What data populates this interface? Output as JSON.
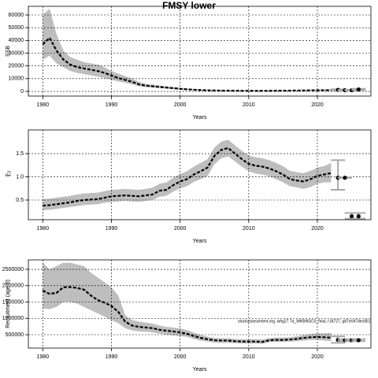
{
  "chart_data": [
    {
      "type": "line",
      "title": "FMSY lower",
      "ylabel": "SSB",
      "xlabel": "Years",
      "grid": true,
      "xlim": [
        1977.9,
        2027.8
      ],
      "xticks": [
        1980,
        1990,
        2000,
        2010,
        2020
      ],
      "ylim": [
        -3700,
        66800
      ],
      "yticks": [
        0,
        10000,
        20000,
        30000,
        40000,
        50000,
        60000
      ],
      "color": "#000000",
      "band_color": "#bebebe",
      "x": [
        1980,
        1981,
        1982,
        1983,
        1984,
        1985,
        1986,
        1987,
        1988,
        1989,
        1990,
        1991,
        1992,
        1993,
        1994,
        1995,
        1996,
        1997,
        1998,
        1999,
        2000,
        2001,
        2002,
        2003,
        2004,
        2005,
        2006,
        2007,
        2008,
        2009,
        2010,
        2011,
        2012,
        2013,
        2014,
        2015,
        2016,
        2017,
        2018,
        2019,
        2020,
        2021,
        2022
      ],
      "values": [
        37000,
        42000,
        32000,
        25000,
        21000,
        19000,
        18000,
        17000,
        16000,
        14500,
        12500,
        10500,
        9000,
        7500,
        5500,
        4500,
        4000,
        3500,
        3000,
        2500,
        2000,
        1600,
        1300,
        1000,
        800,
        700,
        600,
        550,
        500,
        450,
        400,
        400,
        400,
        450,
        500,
        550,
        600,
        650,
        700,
        800,
        850,
        900,
        950
      ],
      "upper": [
        60000,
        65000,
        45000,
        32000,
        27000,
        25000,
        23000,
        22000,
        21000,
        19000,
        16000,
        14000,
        12000,
        10000,
        7500,
        6000,
        5300,
        4600,
        4000,
        3300,
        2700,
        2200,
        1800,
        1400,
        1100,
        1000,
        850,
        800,
        750,
        700,
        650,
        650,
        650,
        700,
        750,
        800,
        850,
        900,
        1000,
        1100,
        1200,
        1300,
        1400
      ],
      "lower": [
        25000,
        28000,
        22000,
        19000,
        16000,
        14500,
        13500,
        12500,
        11500,
        10500,
        9000,
        7800,
        6700,
        5600,
        4000,
        3300,
        3000,
        2600,
        2200,
        1800,
        1400,
        1100,
        900,
        700,
        550,
        480,
        420,
        380,
        340,
        300,
        270,
        270,
        270,
        300,
        330,
        370,
        400,
        450,
        480,
        550,
        580,
        620,
        650
      ],
      "forecast": {
        "x": [
          2023,
          2024,
          2025,
          2026
        ],
        "values": [
          1200,
          900,
          900,
          1500
        ],
        "lower": [
          800,
          600,
          600,
          1000
        ],
        "upper": [
          1600,
          1200,
          1200,
          2000
        ]
      }
    },
    {
      "type": "line",
      "ylabel": "F",
      "ylabel_sub": "1-3",
      "xlabel": "Years",
      "grid": true,
      "xlim": [
        1977.9,
        2027.8
      ],
      "xticks": [
        1980,
        1990,
        2000,
        2010,
        2020
      ],
      "ylim": [
        0.076,
        2.01
      ],
      "yticks": [
        {
          "value": 0.5,
          "label": "0.5"
        },
        {
          "value": 1,
          "label": "1.0"
        },
        {
          "value": 1.5,
          "label": "1.5"
        }
      ],
      "color": "#000000",
      "band_color": "#bebebe",
      "x": [
        1980,
        1981,
        1982,
        1983,
        1984,
        1985,
        1986,
        1987,
        1988,
        1989,
        1990,
        1991,
        1992,
        1993,
        1994,
        1995,
        1996,
        1997,
        1998,
        1999,
        2000,
        2001,
        2002,
        2003,
        2004,
        2005,
        2006,
        2007,
        2008,
        2009,
        2010,
        2011,
        2012,
        2013,
        2014,
        2015,
        2016,
        2017,
        2018,
        2019,
        2020,
        2021,
        2022
      ],
      "values": [
        0.38,
        0.39,
        0.41,
        0.43,
        0.45,
        0.48,
        0.5,
        0.51,
        0.52,
        0.55,
        0.58,
        0.59,
        0.6,
        0.59,
        0.58,
        0.6,
        0.62,
        0.7,
        0.72,
        0.82,
        0.9,
        0.95,
        1.05,
        1.12,
        1.2,
        1.45,
        1.58,
        1.62,
        1.5,
        1.38,
        1.28,
        1.24,
        1.22,
        1.18,
        1.12,
        1.05,
        0.95,
        0.92,
        0.9,
        0.95,
        1.02,
        1.05,
        1.08
      ],
      "upper": [
        0.52,
        0.53,
        0.55,
        0.57,
        0.59,
        0.62,
        0.64,
        0.65,
        0.66,
        0.69,
        0.72,
        0.73,
        0.74,
        0.73,
        0.72,
        0.74,
        0.77,
        0.85,
        0.88,
        0.98,
        1.06,
        1.12,
        1.22,
        1.3,
        1.38,
        1.63,
        1.76,
        1.8,
        1.68,
        1.56,
        1.46,
        1.42,
        1.4,
        1.36,
        1.3,
        1.23,
        1.13,
        1.1,
        1.08,
        1.13,
        1.2,
        1.23,
        1.3
      ],
      "lower": [
        0.28,
        0.29,
        0.31,
        0.33,
        0.35,
        0.37,
        0.39,
        0.4,
        0.41,
        0.44,
        0.46,
        0.47,
        0.48,
        0.47,
        0.46,
        0.48,
        0.5,
        0.57,
        0.59,
        0.68,
        0.75,
        0.8,
        0.89,
        0.95,
        1.02,
        1.27,
        1.4,
        1.44,
        1.33,
        1.22,
        1.12,
        1.07,
        1.05,
        1.01,
        0.95,
        0.88,
        0.8,
        0.77,
        0.74,
        0.78,
        0.85,
        0.88,
        0.88
      ],
      "forecast": {
        "x": [
          2023,
          2024,
          2025,
          2026
        ],
        "values": [
          0.98,
          0.98,
          0.15,
          0.15
        ],
        "lower": [
          0.72,
          0.98,
          0.1,
          0.1
        ],
        "upper": [
          1.36,
          0.98,
          0.22,
          0.22
        ]
      }
    },
    {
      "type": "line",
      "ylabel": "Recruitment (age 0)",
      "xlabel": "Years",
      "grid": true,
      "annotation": "stockassessment.org, whg27.7a_WKBNSCS_final, r18727, g87e047dec851",
      "xlim": [
        1977.9,
        2027.8
      ],
      "xticks": [
        1980,
        1990,
        2000,
        2010,
        2020
      ],
      "ylim": [
        90000,
        2790000
      ],
      "yticks": [
        500000,
        1000000,
        1500000,
        2000000,
        2500000
      ],
      "color": "#000000",
      "band_color": "#bebebe",
      "x": [
        1980,
        1981,
        1982,
        1983,
        1984,
        1985,
        1986,
        1987,
        1988,
        1989,
        1990,
        1991,
        1992,
        1993,
        1994,
        1995,
        1996,
        1997,
        1998,
        1999,
        2000,
        2001,
        2002,
        2003,
        2004,
        2005,
        2006,
        2007,
        2008,
        2009,
        2010,
        2011,
        2012,
        2013,
        2014,
        2015,
        2016,
        2017,
        2018,
        2019,
        2020,
        2021,
        2022
      ],
      "values": [
        1850000,
        1750000,
        1780000,
        1950000,
        1960000,
        1930000,
        1880000,
        1700000,
        1560000,
        1480000,
        1380000,
        1200000,
        900000,
        780000,
        740000,
        720000,
        700000,
        650000,
        620000,
        600000,
        570000,
        530000,
        460000,
        400000,
        360000,
        330000,
        320000,
        320000,
        300000,
        290000,
        290000,
        290000,
        280000,
        330000,
        340000,
        340000,
        350000,
        370000,
        400000,
        420000,
        430000,
        420000,
        410000
      ],
      "upper": [
        2700000,
        2500000,
        2600000,
        2700000,
        2700000,
        2650000,
        2600000,
        2400000,
        2250000,
        2100000,
        1950000,
        1700000,
        1100000,
        950000,
        900000,
        870000,
        840000,
        780000,
        740000,
        720000,
        690000,
        640000,
        560000,
        490000,
        440000,
        400000,
        390000,
        390000,
        370000,
        360000,
        360000,
        360000,
        350000,
        400000,
        410000,
        410000,
        420000,
        450000,
        490000,
        520000,
        540000,
        540000,
        560000
      ],
      "lower": [
        1300000,
        1280000,
        1350000,
        1500000,
        1500000,
        1450000,
        1350000,
        1250000,
        1150000,
        1050000,
        950000,
        850000,
        700000,
        630000,
        600000,
        590000,
        570000,
        530000,
        500000,
        480000,
        460000,
        430000,
        370000,
        320000,
        290000,
        260000,
        250000,
        250000,
        240000,
        230000,
        230000,
        230000,
        220000,
        270000,
        280000,
        280000,
        290000,
        300000,
        320000,
        340000,
        340000,
        320000,
        300000
      ],
      "forecast": {
        "x": [
          2023,
          2024,
          2025,
          2026
        ],
        "values": [
          340000,
          330000,
          330000,
          330000
        ],
        "lower": [
          250000,
          300000,
          300000,
          300000
        ],
        "upper": [
          450000,
          360000,
          360000,
          360000
        ]
      }
    }
  ]
}
